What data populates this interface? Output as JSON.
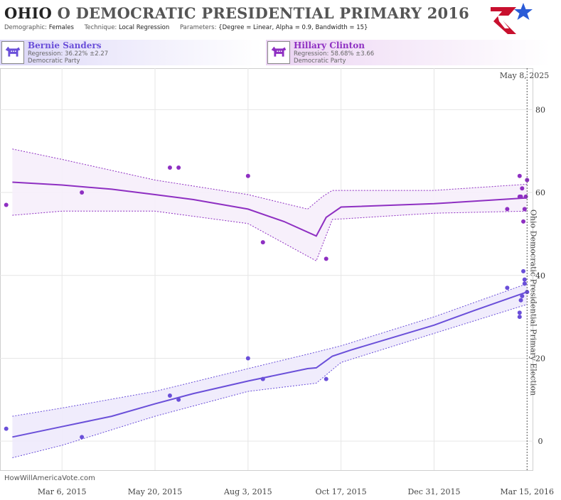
{
  "header": {
    "state": "OHIO",
    "title_rest": "O DEMOCRATIC PRESIDENTIAL PRIMARY 2016",
    "demographic_key": "Demographic:",
    "demographic_value": "Females",
    "technique_key": "Technique:",
    "technique_value": "Local Regression",
    "parameters_key": "Parameters:",
    "parameters_value": "{Degree = Linear, Alpha = 0.9, Bandwidth = 15}"
  },
  "candidates": [
    {
      "name": "Bernie Sanders",
      "regression": "Regression: 36.22% ±2.27",
      "party": "Democratic Party",
      "icon": "democratic-donkey-icon"
    },
    {
      "name": "Hillary Clinton",
      "regression": "Regression: 58.68% ±3.66",
      "party": "Democratic Party",
      "icon": "democratic-donkey-icon"
    }
  ],
  "watermark": "HowWillAmericaVote.com",
  "current_date_label": "May 8, 2025",
  "election_label": "Ohio Democratic Presidential Primary Election",
  "colors": {
    "sanders": "#6a4fd9",
    "clinton": "#8e2fc2",
    "sanders_band": "#eeeafc",
    "clinton_band": "#f6eefb",
    "grid": "#e6e6e6"
  },
  "chart_data": {
    "type": "scatter",
    "x_axis": {
      "type": "date",
      "range": [
        "2015-01-15",
        "2016-03-20"
      ],
      "tick_dates": [
        "2015-03-06",
        "2015-05-20",
        "2015-08-03",
        "2015-10-17",
        "2015-12-31",
        "2016-03-15"
      ],
      "tick_labels": [
        "Mar 6, 2015",
        "May 20, 2015",
        "Aug 3, 2015",
        "Oct 17, 2015",
        "Dec 31, 2015",
        "Mar 15, 2016"
      ]
    },
    "y_axis": {
      "range": [
        -7,
        90
      ],
      "ticks": [
        0,
        20,
        40,
        60,
        80
      ],
      "position": "right"
    },
    "grid": true,
    "election_date": "2016-03-15",
    "series": [
      {
        "name": "Bernie Sanders",
        "points": [
          [
            "2015-01-20",
            3
          ],
          [
            "2015-03-22",
            1
          ],
          [
            "2015-06-01",
            11
          ],
          [
            "2015-06-08",
            10
          ],
          [
            "2015-08-03",
            20
          ],
          [
            "2015-08-15",
            15
          ],
          [
            "2015-10-05",
            15
          ],
          [
            "2016-02-28",
            37
          ],
          [
            "2016-03-09",
            31
          ],
          [
            "2016-03-09",
            30
          ],
          [
            "2016-03-10",
            34
          ],
          [
            "2016-03-11",
            35
          ],
          [
            "2016-03-12",
            41
          ],
          [
            "2016-03-13",
            38
          ],
          [
            "2016-03-13",
            39
          ],
          [
            "2016-03-15",
            36
          ]
        ],
        "regression": [
          [
            "2015-01-25",
            1
          ],
          [
            "2015-03-06",
            3.5
          ],
          [
            "2015-04-15",
            6
          ],
          [
            "2015-05-20",
            9
          ],
          [
            "2015-06-20",
            11.5
          ],
          [
            "2015-08-03",
            14.5
          ],
          [
            "2015-09-20",
            17.5
          ],
          [
            "2015-09-27",
            17.7
          ],
          [
            "2015-10-10",
            20.5
          ],
          [
            "2015-10-25",
            22
          ],
          [
            "2015-12-31",
            28
          ],
          [
            "2016-02-01",
            31.5
          ],
          [
            "2016-03-15",
            36
          ]
        ],
        "band_upper": [
          [
            "2015-01-25",
            6
          ],
          [
            "2015-03-06",
            8
          ],
          [
            "2015-05-20",
            12
          ],
          [
            "2015-08-03",
            17.5
          ],
          [
            "2015-09-27",
            21.5
          ],
          [
            "2015-10-17",
            23
          ],
          [
            "2015-12-31",
            30
          ],
          [
            "2016-03-15",
            38
          ]
        ],
        "band_lower": [
          [
            "2015-01-25",
            -4
          ],
          [
            "2015-03-06",
            -1
          ],
          [
            "2015-05-20",
            6
          ],
          [
            "2015-08-03",
            12
          ],
          [
            "2015-09-27",
            14
          ],
          [
            "2015-10-17",
            19
          ],
          [
            "2015-12-31",
            26
          ],
          [
            "2016-03-15",
            33
          ]
        ]
      },
      {
        "name": "Hillary Clinton",
        "points": [
          [
            "2015-01-20",
            57
          ],
          [
            "2015-03-22",
            60
          ],
          [
            "2015-06-01",
            66
          ],
          [
            "2015-06-08",
            66
          ],
          [
            "2015-08-03",
            64
          ],
          [
            "2015-08-15",
            48
          ],
          [
            "2015-10-05",
            44
          ],
          [
            "2016-02-28",
            56
          ],
          [
            "2016-03-09",
            64
          ],
          [
            "2016-03-09",
            59
          ],
          [
            "2016-03-10",
            59
          ],
          [
            "2016-03-11",
            61
          ],
          [
            "2016-03-12",
            53
          ],
          [
            "2016-03-13",
            56
          ],
          [
            "2016-03-14",
            59
          ],
          [
            "2016-03-15",
            63
          ]
        ],
        "regression": [
          [
            "2015-01-25",
            62.5
          ],
          [
            "2015-03-06",
            61.8
          ],
          [
            "2015-04-15",
            60.8
          ],
          [
            "2015-05-20",
            59.5
          ],
          [
            "2015-06-20",
            58.3
          ],
          [
            "2015-08-03",
            56
          ],
          [
            "2015-09-01",
            53
          ],
          [
            "2015-09-27",
            49.5
          ],
          [
            "2015-10-05",
            54
          ],
          [
            "2015-10-17",
            56.5
          ],
          [
            "2015-12-31",
            57.3
          ],
          [
            "2016-03-15",
            58.7
          ]
        ],
        "band_upper": [
          [
            "2015-01-25",
            70.5
          ],
          [
            "2015-03-06",
            68
          ],
          [
            "2015-05-20",
            63
          ],
          [
            "2015-08-03",
            59.5
          ],
          [
            "2015-09-20",
            56
          ],
          [
            "2015-10-02",
            59
          ],
          [
            "2015-10-10",
            60.5
          ],
          [
            "2015-12-31",
            60.5
          ],
          [
            "2016-03-15",
            62
          ]
        ],
        "band_lower": [
          [
            "2015-01-25",
            54.5
          ],
          [
            "2015-03-06",
            55.5
          ],
          [
            "2015-05-20",
            55.5
          ],
          [
            "2015-08-03",
            52.5
          ],
          [
            "2015-09-27",
            43.5
          ],
          [
            "2015-10-10",
            53.5
          ],
          [
            "2015-12-31",
            55
          ],
          [
            "2016-03-15",
            55.5
          ]
        ]
      }
    ]
  }
}
